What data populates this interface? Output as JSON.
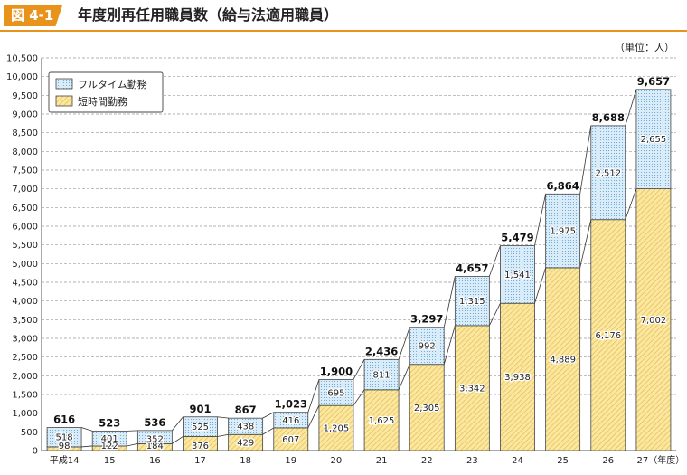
{
  "header": {
    "figure_label": "図 4-1",
    "title": "年度別再任用職員数（給与法適用職員）"
  },
  "unit_label": "（単位：人）",
  "chart_data": {
    "type": "bar",
    "stacked": true,
    "title": "年度別再任用職員数（給与法適用職員）",
    "categories": [
      "平成14",
      "15",
      "16",
      "17",
      "18",
      "19",
      "20",
      "21",
      "22",
      "23",
      "24",
      "25",
      "26",
      "27"
    ],
    "x_suffix": "（年度）",
    "series": [
      {
        "name": "短時間勤務",
        "values": [
          98,
          122,
          184,
          376,
          429,
          607,
          1205,
          1625,
          2305,
          3342,
          3938,
          4889,
          6176,
          7002
        ]
      },
      {
        "name": "フルタイム勤務",
        "values": [
          518,
          401,
          352,
          525,
          438,
          416,
          695,
          811,
          992,
          1315,
          1541,
          1975,
          2512,
          2655
        ]
      }
    ],
    "totals": [
      616,
      523,
      536,
      901,
      867,
      1023,
      1900,
      2436,
      3297,
      4657,
      5479,
      6864,
      8688,
      9657
    ],
    "ylim": [
      0,
      10500
    ],
    "ytick_step": 500,
    "grid": true,
    "legend_position": "top-left",
    "colors": {
      "short_time": "#fbe7a0",
      "short_time_hatch": "#e0b94c",
      "full_time": "#d9ecf8",
      "full_time_dot": "#5a9fd4"
    }
  }
}
